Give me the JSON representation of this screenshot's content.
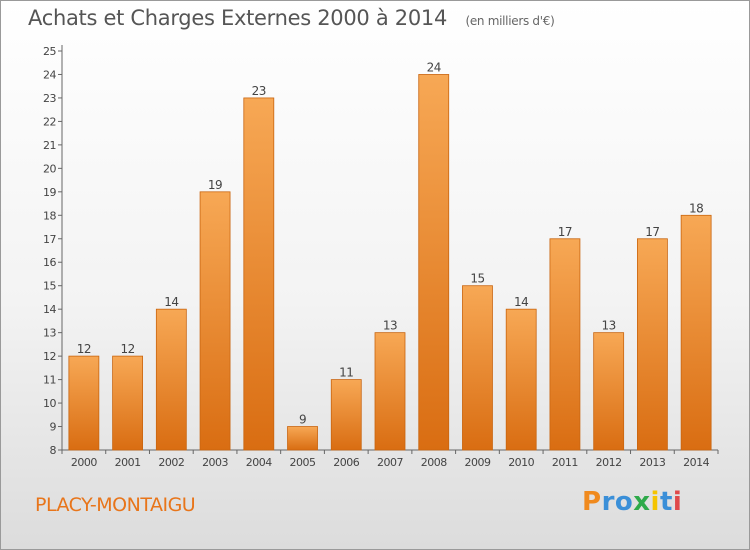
{
  "header": {
    "title": "Achats et Charges Externes 2000 à 2014",
    "unit": "(en milliers d'€)"
  },
  "footer": {
    "commune": "PLACY-MONTAIGU"
  },
  "logo": {
    "letters": [
      "P",
      "r",
      "o",
      "x",
      "i",
      "t",
      "i"
    ],
    "colors": [
      "#f08a1e",
      "#3a8fd8",
      "#3a8fd8",
      "#2eaa4a",
      "#f5c400",
      "#3a8fd8",
      "#e04a4a"
    ]
  },
  "chart_data": {
    "type": "bar",
    "title": "Achats et Charges Externes 2000 à 2014",
    "subtitle": "(en milliers d'€)",
    "categories": [
      "2000",
      "2001",
      "2002",
      "2003",
      "2004",
      "2005",
      "2006",
      "2007",
      "2008",
      "2009",
      "2010",
      "2011",
      "2012",
      "2013",
      "2014"
    ],
    "values": [
      12,
      12,
      14,
      19,
      23,
      9,
      11,
      13,
      24,
      15,
      14,
      17,
      13,
      17,
      18
    ],
    "ylim": [
      8,
      25
    ],
    "yticks": [
      8,
      9,
      10,
      11,
      12,
      13,
      14,
      15,
      16,
      17,
      18,
      19,
      20,
      21,
      22,
      23,
      24,
      25
    ],
    "grid": false,
    "bar_color_top": "#f7a855",
    "bar_color_bottom": "#d96d12",
    "label_color": "#444444"
  }
}
